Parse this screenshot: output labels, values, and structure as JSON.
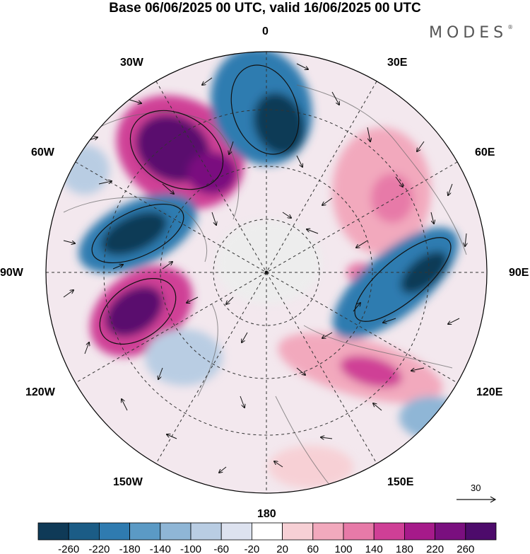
{
  "title": "Base 06/06/2025 00 UTC, valid 16/06/2025 00 UTC",
  "brand": "MODES",
  "brand_mark": "®",
  "map": {
    "projection": "polar stereographic, north pole centered",
    "longitude_labels": [
      "0",
      "30E",
      "60E",
      "90E",
      "120E",
      "150E",
      "180",
      "150W",
      "120W",
      "90W",
      "60W",
      "30W"
    ],
    "reference_vector": "30",
    "features": [
      "coastlines",
      "wind vectors",
      "graticule (dashed)"
    ],
    "colors": {
      "negative_strong": "#1a4b6e",
      "positive_strong": "#5a0f6e",
      "neutral": "#ffffff",
      "land_shade": "#d8d8d8"
    }
  },
  "colorbar": {
    "tick_labels": [
      "-260",
      "-220",
      "-180",
      "-140",
      "-100",
      "-60",
      "-20",
      "20",
      "60",
      "100",
      "140",
      "180",
      "220",
      "260"
    ],
    "colors": [
      "#0f3a57",
      "#1b5c86",
      "#2f7bb0",
      "#5b9ac5",
      "#8fb6d6",
      "#b9cde3",
      "#dde2ef",
      "#ffffff",
      "#f7d0d5",
      "#f2a9bd",
      "#e77aa8",
      "#cf3f96",
      "#a61a8a",
      "#7a0f7f",
      "#4d0b6b"
    ]
  }
}
